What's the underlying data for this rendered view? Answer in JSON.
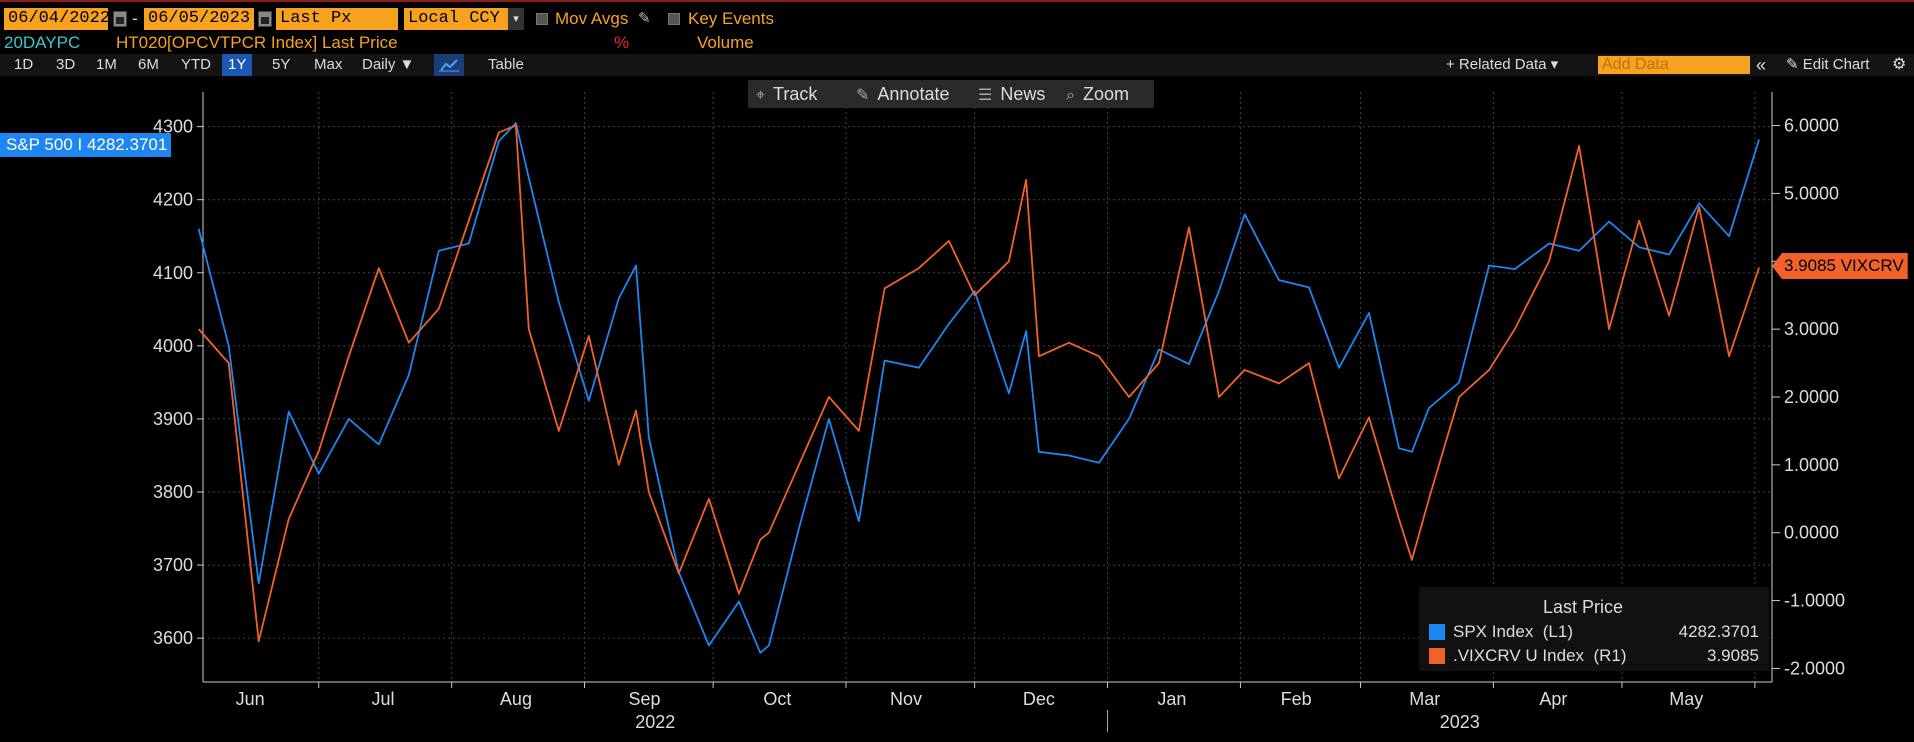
{
  "header": {
    "start_date": "06/04/2022",
    "end_date": "06/05/2023",
    "price_field": "Last Px",
    "currency": "Local CCY",
    "mov_avgs": "Mov Avgs",
    "key_events": "Key Events",
    "pencil_icon": "pencil-icon"
  },
  "subheader": {
    "study": "20DAYPC",
    "series": "HT020[OPCVTPCR Index] Last Price",
    "pct": "%",
    "volume": "Volume"
  },
  "toolbar": {
    "periods": [
      "1D",
      "3D",
      "1M",
      "6M",
      "YTD",
      "1Y",
      "5Y",
      "Max"
    ],
    "selected_period": "1Y",
    "frequency": "Daily ▼",
    "table": "Table",
    "related_data": "+ Related Data ▾",
    "add_data_placeholder": "Add Data",
    "collapse": "«",
    "edit_chart": "✎ Edit Chart",
    "settings_icon": "gear-icon"
  },
  "floating_toolbar": {
    "track": "Track",
    "annotate": "Annotate",
    "news": "News",
    "zoom": "Zoom"
  },
  "tags": {
    "spx": "S&P 500 I 4282.3701",
    "vix": "3.9085 VIXCRV"
  },
  "legend": {
    "title": "Last Price",
    "items": [
      {
        "name": "SPX Index  (L1)",
        "value": "4282.3701",
        "color": "#1e86f0"
      },
      {
        "name": ".VIXCRV U Index  (R1)",
        "value": "3.9085",
        "color": "#f0622a"
      }
    ]
  },
  "chart_data": {
    "type": "line",
    "x_tick_labels": [
      "Jun",
      "Jul",
      "Aug",
      "Sep",
      "Oct",
      "Nov",
      "Dec",
      "Jan",
      "Feb",
      "Mar",
      "Apr",
      "May"
    ],
    "year_labels": [
      "2022",
      "2023"
    ],
    "left_axis": {
      "ticks": [
        4300,
        4200,
        4100,
        4000,
        3900,
        3800,
        3700,
        3600
      ],
      "ylim": [
        3540,
        4320
      ]
    },
    "right_axis": {
      "ticks": [
        "6.0000",
        "5.0000",
        "4.0000",
        "3.0000",
        "2.0000",
        "1.0000",
        "0.0000",
        "-1.0000",
        "-2.0000"
      ],
      "ylim": [
        -2.2,
        6.2
      ]
    },
    "grid": true,
    "series": [
      {
        "name": "SPX Index  (L1)",
        "axis": "left",
        "color": "#1e86f0",
        "x": [
          "2022-06-03",
          "2022-06-10",
          "2022-06-17",
          "2022-06-24",
          "2022-07-01",
          "2022-07-08",
          "2022-07-15",
          "2022-07-22",
          "2022-07-29",
          "2022-08-05",
          "2022-08-12",
          "2022-08-16",
          "2022-08-19",
          "2022-08-26",
          "2022-09-02",
          "2022-09-09",
          "2022-09-13",
          "2022-09-16",
          "2022-09-23",
          "2022-09-30",
          "2022-10-07",
          "2022-10-12",
          "2022-10-14",
          "2022-10-21",
          "2022-10-28",
          "2022-11-04",
          "2022-11-10",
          "2022-11-18",
          "2022-11-25",
          "2022-12-01",
          "2022-12-09",
          "2022-12-13",
          "2022-12-16",
          "2022-12-23",
          "2022-12-30",
          "2023-01-06",
          "2023-01-13",
          "2023-01-20",
          "2023-01-27",
          "2023-02-02",
          "2023-02-10",
          "2023-02-17",
          "2023-02-24",
          "2023-03-03",
          "2023-03-10",
          "2023-03-13",
          "2023-03-17",
          "2023-03-24",
          "2023-03-31",
          "2023-04-06",
          "2023-04-14",
          "2023-04-21",
          "2023-04-28",
          "2023-05-05",
          "2023-05-12",
          "2023-05-19",
          "2023-05-26",
          "2023-06-02"
        ],
        "values": [
          4160,
          4000,
          3675,
          3910,
          3825,
          3900,
          3865,
          3960,
          4130,
          4140,
          4280,
          4305,
          4230,
          4060,
          3925,
          4065,
          4110,
          3875,
          3690,
          3590,
          3650,
          3580,
          3590,
          3750,
          3900,
          3760,
          3980,
          3970,
          4030,
          4075,
          3935,
          4020,
          3855,
          3850,
          3840,
          3900,
          3995,
          3975,
          4075,
          4180,
          4090,
          4080,
          3970,
          4045,
          3860,
          3855,
          3915,
          3950,
          4110,
          4105,
          4140,
          4130,
          4170,
          4135,
          4125,
          4195,
          4150,
          4282.3701
        ]
      },
      {
        "name": ".VIXCRV U Index  (R1)",
        "axis": "right",
        "color": "#f0622a",
        "x": [
          "2022-06-03",
          "2022-06-10",
          "2022-06-17",
          "2022-06-24",
          "2022-07-01",
          "2022-07-08",
          "2022-07-15",
          "2022-07-22",
          "2022-07-29",
          "2022-08-05",
          "2022-08-12",
          "2022-08-16",
          "2022-08-19",
          "2022-08-26",
          "2022-09-02",
          "2022-09-09",
          "2022-09-13",
          "2022-09-16",
          "2022-09-23",
          "2022-09-30",
          "2022-10-07",
          "2022-10-12",
          "2022-10-14",
          "2022-10-21",
          "2022-10-28",
          "2022-11-04",
          "2022-11-10",
          "2022-11-18",
          "2022-11-25",
          "2022-12-01",
          "2022-12-09",
          "2022-12-13",
          "2022-12-16",
          "2022-12-23",
          "2022-12-30",
          "2023-01-06",
          "2023-01-13",
          "2023-01-20",
          "2023-01-27",
          "2023-02-02",
          "2023-02-10",
          "2023-02-17",
          "2023-02-24",
          "2023-03-03",
          "2023-03-10",
          "2023-03-13",
          "2023-03-17",
          "2023-03-24",
          "2023-03-31",
          "2023-04-06",
          "2023-04-14",
          "2023-04-21",
          "2023-04-28",
          "2023-05-05",
          "2023-05-12",
          "2023-05-19",
          "2023-05-26",
          "2023-06-02"
        ],
        "values": [
          3.0,
          2.5,
          -1.6,
          0.2,
          1.2,
          2.6,
          3.9,
          2.8,
          3.3,
          4.6,
          5.9,
          6.0,
          3.0,
          1.5,
          2.9,
          1.0,
          1.8,
          0.6,
          -0.6,
          0.5,
          -0.9,
          -0.1,
          0.0,
          1.0,
          2.0,
          1.5,
          3.6,
          3.9,
          4.3,
          3.5,
          4.0,
          5.2,
          2.6,
          2.8,
          2.6,
          2.0,
          2.5,
          4.5,
          2.0,
          2.4,
          2.2,
          2.5,
          0.8,
          1.7,
          0.2,
          -0.4,
          0.5,
          2.0,
          2.4,
          3.0,
          4.0,
          5.7,
          3.0,
          4.6,
          3.2,
          4.8,
          2.6,
          3.9085
        ]
      }
    ]
  }
}
